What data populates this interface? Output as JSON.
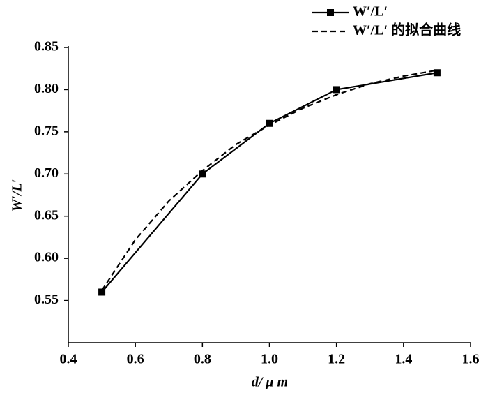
{
  "chart_data": {
    "type": "line",
    "x_label": "d/ μ m",
    "y_label": "W′/L′",
    "series": [
      {
        "name": "W′/L′",
        "color": "#000000",
        "line_style": "solid",
        "marker": "square",
        "x": [
          0.5,
          0.8,
          1.0,
          1.2,
          1.5
        ],
        "values": [
          0.56,
          0.7,
          0.76,
          0.8,
          0.82
        ]
      },
      {
        "name": "W′/L′ 的拟合曲线",
        "color": "#000000",
        "line_style": "dashed",
        "marker": "none",
        "x": [
          0.5,
          0.6,
          0.7,
          0.8,
          0.9,
          1.0,
          1.1,
          1.2,
          1.3,
          1.4,
          1.5
        ],
        "values": [
          0.562,
          0.622,
          0.668,
          0.704,
          0.735,
          0.758,
          0.778,
          0.794,
          0.807,
          0.816,
          0.823
        ]
      }
    ],
    "xlim": [
      0.4,
      1.6
    ],
    "xticks": [
      0.4,
      0.6,
      0.8,
      {
        "value": 1,
        "label": "1.0"
      },
      1.2,
      1.4,
      1.6
    ],
    "ylim": [
      0.5,
      0.85
    ],
    "yticks": [
      0.55,
      {
        "value": 0.6,
        "label": "0.60"
      },
      0.65,
      {
        "value": 0.7,
        "label": "0.70"
      },
      0.75,
      {
        "value": 0.8,
        "label": "0.80"
      },
      0.85
    ],
    "grid": false,
    "legend": "top-right"
  }
}
